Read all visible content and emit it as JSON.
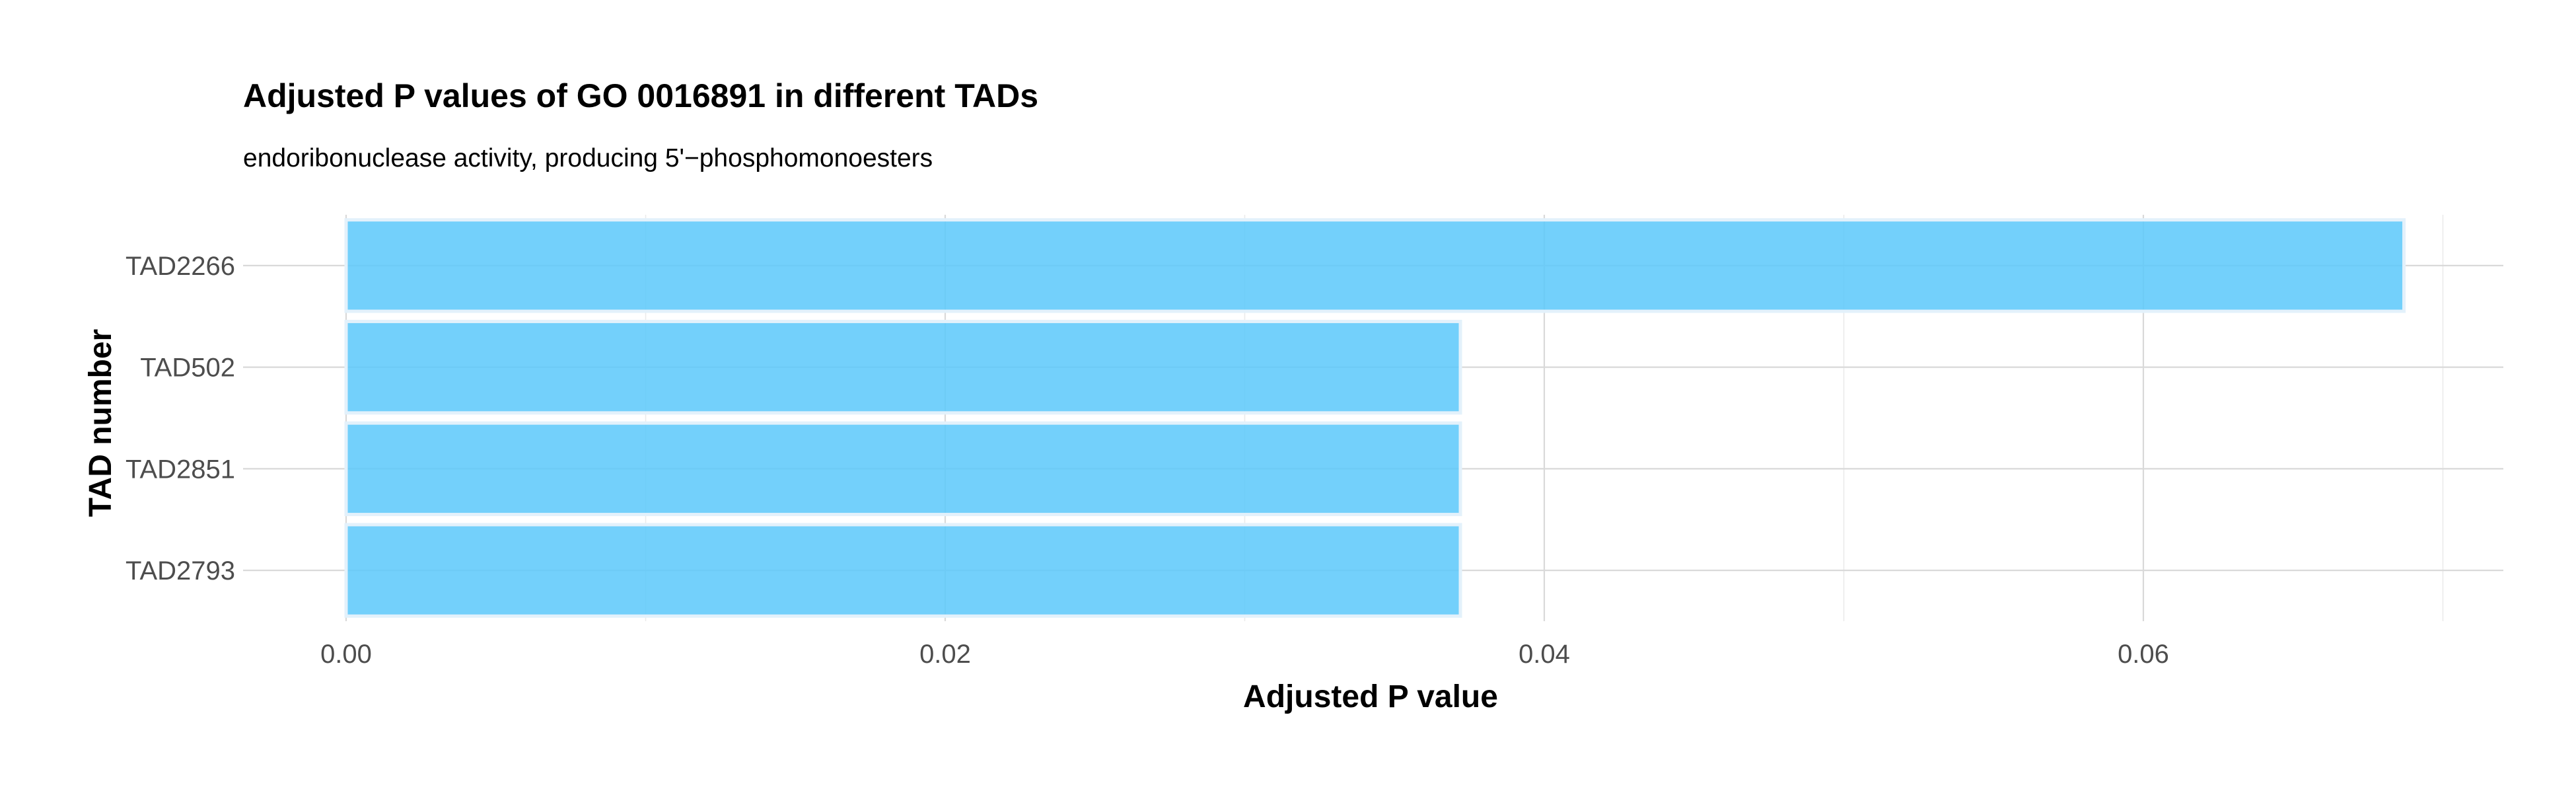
{
  "chart_data": {
    "type": "bar",
    "orientation": "horizontal",
    "title": "Adjusted P values of GO 0016891 in different TADs",
    "subtitle": "endoribonuclease activity, producing 5'−phosphomonoesters",
    "xlabel": "Adjusted P value",
    "ylabel": "TAD number",
    "categories": [
      "TAD2266",
      "TAD502",
      "TAD2851",
      "TAD2793"
    ],
    "values": [
      0.0687,
      0.0372,
      0.0372,
      0.0372
    ],
    "xlim": [
      0,
      0.072
    ],
    "x_ticks": [
      0.0,
      0.02,
      0.04,
      0.06
    ],
    "x_tick_labels": [
      "0.00",
      "0.02",
      "0.04",
      "0.06"
    ],
    "grid": true,
    "legend": "none",
    "colors": {
      "bar_fill": "#5bc8fa",
      "bar_outline": "#e3f1fb",
      "grid_major": "#d9d9d9",
      "grid_minor": "#ebebeb"
    }
  }
}
